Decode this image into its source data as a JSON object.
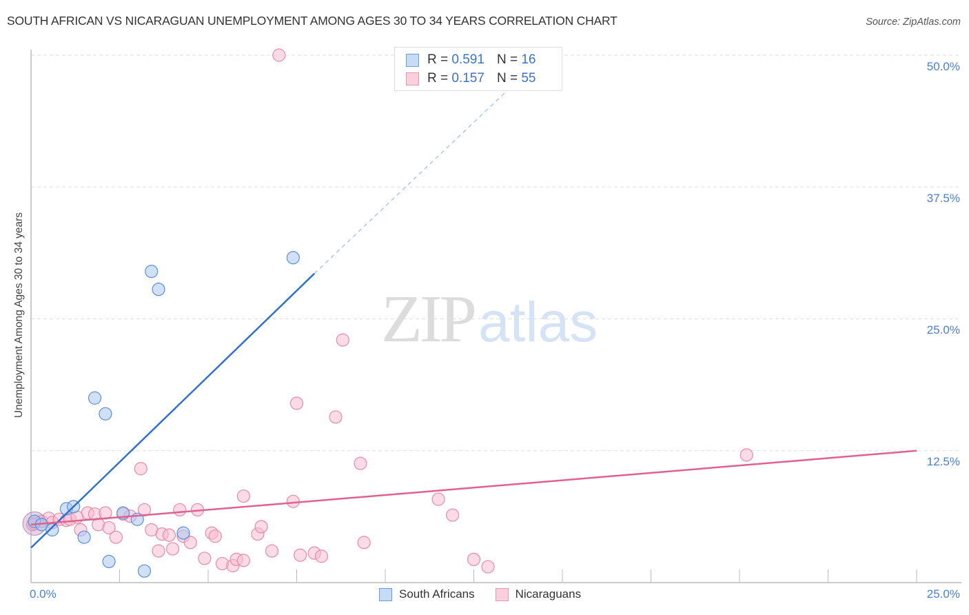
{
  "header": {
    "title": "SOUTH AFRICAN VS NICARAGUAN UNEMPLOYMENT AMONG AGES 30 TO 34 YEARS CORRELATION CHART",
    "source": "Source: ZipAtlas.com"
  },
  "watermark": {
    "zip": "ZIP",
    "atlas": "atlas"
  },
  "axes": {
    "ylabel": "Unemployment Among Ages 30 to 34 years",
    "yticks": [
      "50.0%",
      "37.5%",
      "25.0%",
      "12.5%"
    ],
    "xticks": [
      "0.0%",
      "25.0%"
    ]
  },
  "legend_top": {
    "rows": [
      {
        "r_label": "R = ",
        "r_value": "0.591",
        "n_label": "N = ",
        "n_value": "16",
        "color": "#a9c8f0"
      },
      {
        "r_label": "R = ",
        "r_value": "0.157",
        "n_label": "N = ",
        "n_value": "55",
        "color": "#f7bdd0"
      }
    ]
  },
  "legend_bottom": {
    "items": [
      {
        "label": "South Africans",
        "color": "#a9c8f0"
      },
      {
        "label": "Nicaraguans",
        "color": "#f7bdd0"
      }
    ]
  },
  "colors": {
    "blue_fill": "#a9c8f0",
    "blue_stroke": "#5b8fd8",
    "blue_line": "#2f6fd0",
    "pink_fill": "#f7bdd0",
    "pink_stroke": "#e68aa8",
    "pink_line": "#e06090",
    "tick_label": "#4a7fd0",
    "grid": "#dddddd"
  },
  "chart_data": {
    "type": "scatter",
    "title": "SOUTH AFRICAN VS NICARAGUAN UNEMPLOYMENT AMONG AGES 30 TO 34 YEARS CORRELATION CHART",
    "xlabel": "",
    "ylabel": "Unemployment Among Ages 30 to 34 years",
    "xlim": [
      0,
      25
    ],
    "ylim": [
      0,
      50
    ],
    "x_tick_labels": [
      "0.0%",
      "25.0%"
    ],
    "y_tick_labels": [
      "12.5%",
      "25.0%",
      "37.5%",
      "50.0%"
    ],
    "grid": true,
    "legend_position": "top-center and bottom",
    "series": [
      {
        "name": "South Africans",
        "R": 0.591,
        "N": 16,
        "points": [
          [
            0.1,
            5.8
          ],
          [
            0.3,
            5.5
          ],
          [
            0.6,
            5.0
          ],
          [
            1.0,
            7.0
          ],
          [
            1.2,
            7.2
          ],
          [
            1.5,
            4.3
          ],
          [
            1.8,
            17.5
          ],
          [
            2.1,
            16.0
          ],
          [
            2.2,
            2.0
          ],
          [
            2.6,
            6.6
          ],
          [
            3.0,
            6.0
          ],
          [
            3.2,
            1.1
          ],
          [
            3.4,
            29.5
          ],
          [
            3.6,
            27.8
          ],
          [
            4.3,
            4.7
          ],
          [
            7.4,
            30.8
          ]
        ],
        "trendline": {
          "x0": 0,
          "y0": 3.3,
          "x1": 8.0,
          "y1": 29.3,
          "dashed_extension_to": [
            14.5,
            50.0
          ]
        }
      },
      {
        "name": "Nicaraguans",
        "R": 0.157,
        "N": 55,
        "points": [
          [
            0.1,
            5.6
          ],
          [
            0.3,
            5.8
          ],
          [
            0.5,
            6.1
          ],
          [
            0.6,
            5.7
          ],
          [
            0.8,
            6.0
          ],
          [
            1.0,
            5.9
          ],
          [
            1.1,
            6.0
          ],
          [
            1.4,
            5.0
          ],
          [
            1.6,
            6.6
          ],
          [
            1.8,
            6.5
          ],
          [
            1.9,
            5.5
          ],
          [
            2.1,
            6.6
          ],
          [
            2.2,
            5.2
          ],
          [
            2.4,
            4.3
          ],
          [
            2.6,
            6.5
          ],
          [
            2.8,
            6.3
          ],
          [
            3.1,
            10.8
          ],
          [
            3.2,
            6.9
          ],
          [
            3.4,
            5.0
          ],
          [
            3.6,
            3.0
          ],
          [
            3.7,
            4.6
          ],
          [
            3.9,
            4.5
          ],
          [
            4.0,
            3.2
          ],
          [
            4.2,
            6.9
          ],
          [
            4.3,
            4.4
          ],
          [
            4.5,
            3.8
          ],
          [
            4.7,
            6.9
          ],
          [
            4.9,
            2.3
          ],
          [
            5.1,
            4.7
          ],
          [
            5.2,
            4.4
          ],
          [
            5.4,
            1.8
          ],
          [
            5.7,
            1.6
          ],
          [
            5.8,
            2.2
          ],
          [
            6.0,
            8.2
          ],
          [
            6.0,
            2.1
          ],
          [
            6.4,
            4.6
          ],
          [
            6.5,
            5.3
          ],
          [
            6.8,
            3.0
          ],
          [
            7.0,
            50.0
          ],
          [
            7.4,
            7.7
          ],
          [
            7.5,
            17.0
          ],
          [
            7.6,
            2.6
          ],
          [
            8.0,
            2.8
          ],
          [
            8.2,
            2.5
          ],
          [
            8.6,
            15.7
          ],
          [
            8.8,
            23.0
          ],
          [
            9.3,
            11.3
          ],
          [
            9.4,
            3.8
          ],
          [
            11.5,
            7.9
          ],
          [
            11.9,
            6.4
          ],
          [
            12.5,
            2.2
          ],
          [
            12.9,
            1.5
          ],
          [
            0.05,
            5.5
          ],
          [
            1.3,
            6.2
          ],
          [
            20.2,
            12.1
          ]
        ],
        "trendline": {
          "x0": 0,
          "y0": 5.5,
          "x1": 25,
          "y1": 12.5
        }
      }
    ]
  }
}
